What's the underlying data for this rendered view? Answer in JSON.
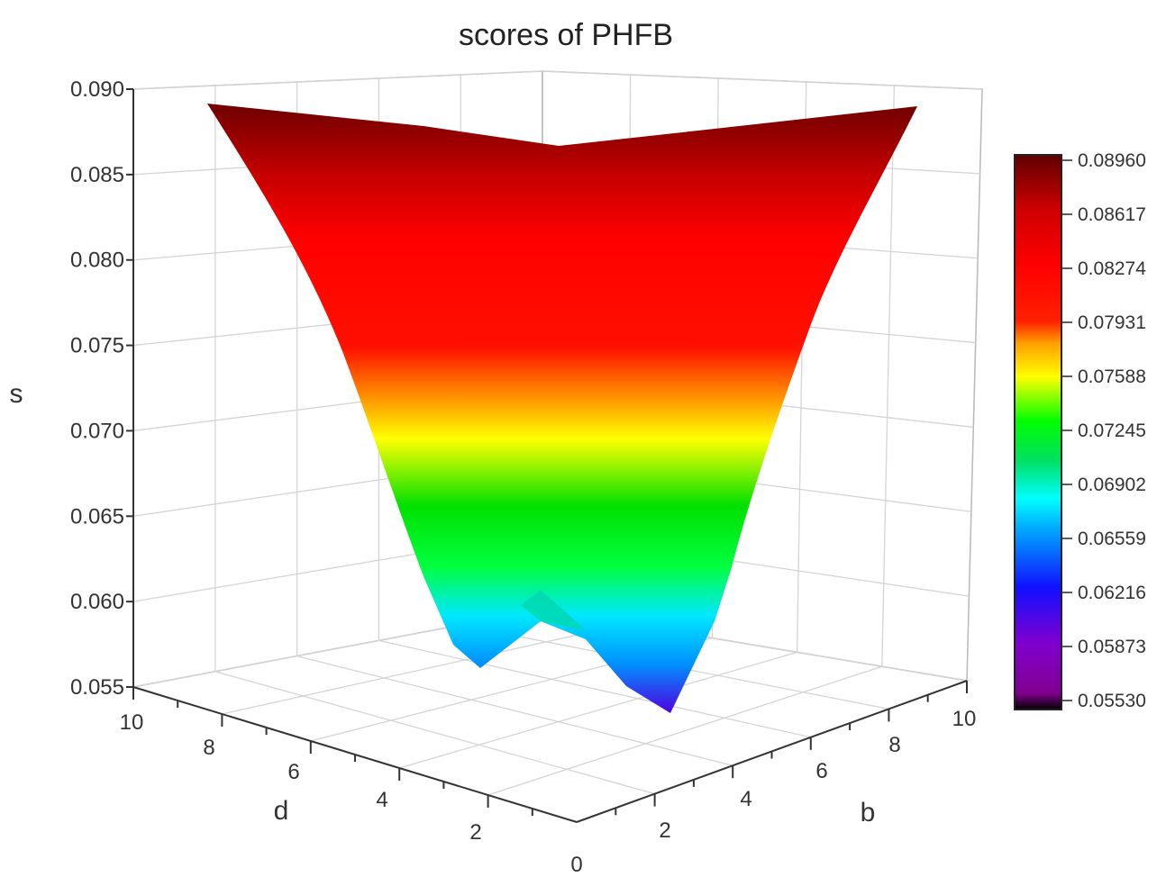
{
  "chart_data": {
    "type": "surface3d",
    "title": "scores of PHFB",
    "xlabel": "d",
    "ylabel": "b",
    "zlabel": "s",
    "xlim": [
      0,
      10
    ],
    "ylim": [
      0,
      10
    ],
    "zlim": [
      0.055,
      0.09
    ],
    "x_ticks": [
      "2",
      "4",
      "6",
      "8",
      "10"
    ],
    "y_ticks": [
      "0",
      "2",
      "4",
      "6",
      "8",
      "10"
    ],
    "z_ticks": [
      "0.055",
      "0.060",
      "0.065",
      "0.070",
      "0.075",
      "0.080",
      "0.085",
      "0.090"
    ],
    "corner_values": {
      "d10_b0": 0.0892,
      "d10_b10": 0.0892,
      "d0_b10": 0.0892,
      "d0_b0": 0.0553
    },
    "colorbar": {
      "ticks": [
        "0.05530",
        "0.05873",
        "0.06216",
        "0.06559",
        "0.06902",
        "0.07245",
        "0.07588",
        "0.07931",
        "0.08274",
        "0.08617",
        "0.08960"
      ],
      "colors": [
        "#000000",
        "#8000c0",
        "#1010ff",
        "#00b0ff",
        "#00ffff",
        "#00ff00",
        "#ffff00",
        "#ff8000",
        "#ff0000",
        "#dd0000",
        "#700000"
      ]
    },
    "grid": true
  }
}
